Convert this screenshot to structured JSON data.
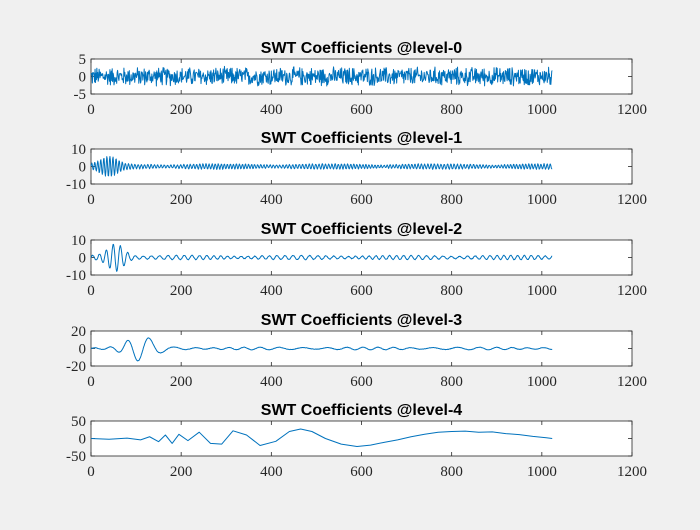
{
  "chart_data": [
    {
      "type": "line",
      "title": "SWT Coefficients @level-0",
      "xlim": [
        0,
        1200
      ],
      "ylim": [
        -5,
        5
      ],
      "xticks": [
        0,
        200,
        400,
        600,
        800,
        1000,
        1200
      ],
      "yticks": [
        -5,
        0,
        5
      ],
      "series": [
        {
          "n": 1024,
          "amplitude": 2.5,
          "shape": "dense-noise",
          "color": "#0072bd"
        }
      ]
    },
    {
      "type": "line",
      "title": "SWT Coefficients @level-1",
      "xlim": [
        0,
        1200
      ],
      "ylim": [
        -10,
        10
      ],
      "xticks": [
        0,
        200,
        400,
        600,
        800,
        1000,
        1200
      ],
      "yticks": [
        -10,
        0,
        10
      ],
      "series": [
        {
          "n": 1024,
          "amplitude": 1.5,
          "burst_amplitude": 4.5,
          "burst_center": 40,
          "shape": "fine-oscillation",
          "color": "#0072bd"
        }
      ]
    },
    {
      "type": "line",
      "title": "SWT Coefficients @level-2",
      "xlim": [
        0,
        1200
      ],
      "ylim": [
        -10,
        10
      ],
      "xticks": [
        0,
        200,
        400,
        600,
        800,
        1000,
        1200
      ],
      "yticks": [
        -10,
        0,
        10
      ],
      "series": [
        {
          "n": 1024,
          "amplitude": 1.2,
          "burst_amplitude": 7,
          "burst_center": 55,
          "shape": "medium-oscillation",
          "color": "#0072bd"
        }
      ]
    },
    {
      "type": "line",
      "title": "SWT Coefficients @level-3",
      "xlim": [
        0,
        1200
      ],
      "ylim": [
        -20,
        20
      ],
      "xticks": [
        0,
        200,
        400,
        600,
        800,
        1000,
        1200
      ],
      "yticks": [
        -20,
        0,
        20
      ],
      "series": [
        {
          "n": 1024,
          "amplitude": 1.5,
          "burst_amplitude": 13,
          "burst_center": 110,
          "shape": "coarse-oscillation",
          "color": "#0072bd"
        }
      ]
    },
    {
      "type": "line",
      "title": "SWT Coefficients @level-4",
      "xlim": [
        0,
        1200
      ],
      "ylim": [
        -50,
        50
      ],
      "xticks": [
        0,
        200,
        400,
        600,
        800,
        1000,
        1200
      ],
      "yticks": [
        -50,
        0,
        50
      ],
      "series": [
        {
          "color": "#0072bd",
          "x": [
            0,
            40,
            80,
            110,
            130,
            150,
            165,
            180,
            195,
            215,
            240,
            265,
            290,
            315,
            345,
            375,
            410,
            440,
            465,
            490,
            520,
            555,
            590,
            620,
            650,
            680,
            710,
            740,
            770,
            800,
            830,
            860,
            890,
            920,
            950,
            980,
            1010,
            1023
          ],
          "y": [
            0,
            -2,
            1,
            -4,
            5,
            -9,
            10,
            -14,
            12,
            -6,
            18,
            -14,
            -16,
            22,
            10,
            -20,
            -8,
            20,
            27,
            20,
            0,
            -16,
            -23,
            -19,
            -11,
            -4,
            5,
            12,
            18,
            20,
            21,
            18,
            19,
            14,
            11,
            6,
            2,
            0
          ]
        }
      ]
    }
  ]
}
